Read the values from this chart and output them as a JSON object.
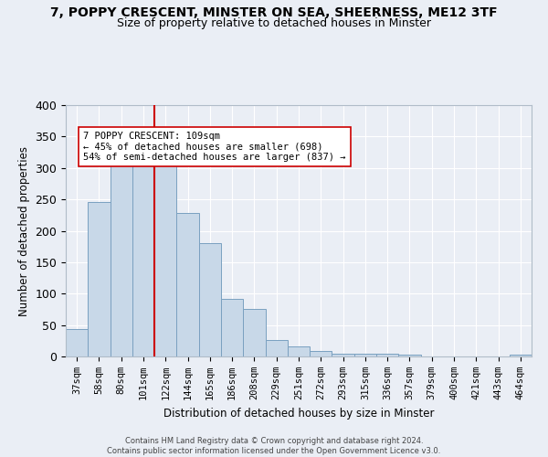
{
  "title_line1": "7, POPPY CRESCENT, MINSTER ON SEA, SHEERNESS, ME12 3TF",
  "title_line2": "Size of property relative to detached houses in Minster",
  "xlabel": "Distribution of detached houses by size in Minster",
  "ylabel": "Number of detached properties",
  "footnote": "Contains HM Land Registry data © Crown copyright and database right 2024.\nContains public sector information licensed under the Open Government Licence v3.0.",
  "bar_labels": [
    "37sqm",
    "58sqm",
    "80sqm",
    "101sqm",
    "122sqm",
    "144sqm",
    "165sqm",
    "186sqm",
    "208sqm",
    "229sqm",
    "251sqm",
    "272sqm",
    "293sqm",
    "315sqm",
    "336sqm",
    "357sqm",
    "379sqm",
    "400sqm",
    "421sqm",
    "443sqm",
    "464sqm"
  ],
  "bar_heights": [
    44,
    246,
    313,
    335,
    335,
    228,
    180,
    91,
    75,
    26,
    16,
    9,
    5,
    5,
    4,
    3,
    0,
    0,
    0,
    0,
    3
  ],
  "bar_color": "#c8d8e8",
  "bar_edge_color": "#7aa0c0",
  "vline_x": 3.5,
  "vline_color": "#cc0000",
  "annotation_text": "7 POPPY CRESCENT: 109sqm\n← 45% of detached houses are smaller (698)\n54% of semi-detached houses are larger (837) →",
  "annotation_box_color": "#ffffff",
  "annotation_box_edge_color": "#cc0000",
  "ylim": [
    0,
    400
  ],
  "yticks": [
    0,
    50,
    100,
    150,
    200,
    250,
    300,
    350,
    400
  ],
  "bg_color": "#eaeef5",
  "plot_bg_color": "#eaeef5",
  "grid_color": "#ffffff",
  "title_fontsize": 10,
  "subtitle_fontsize": 9
}
